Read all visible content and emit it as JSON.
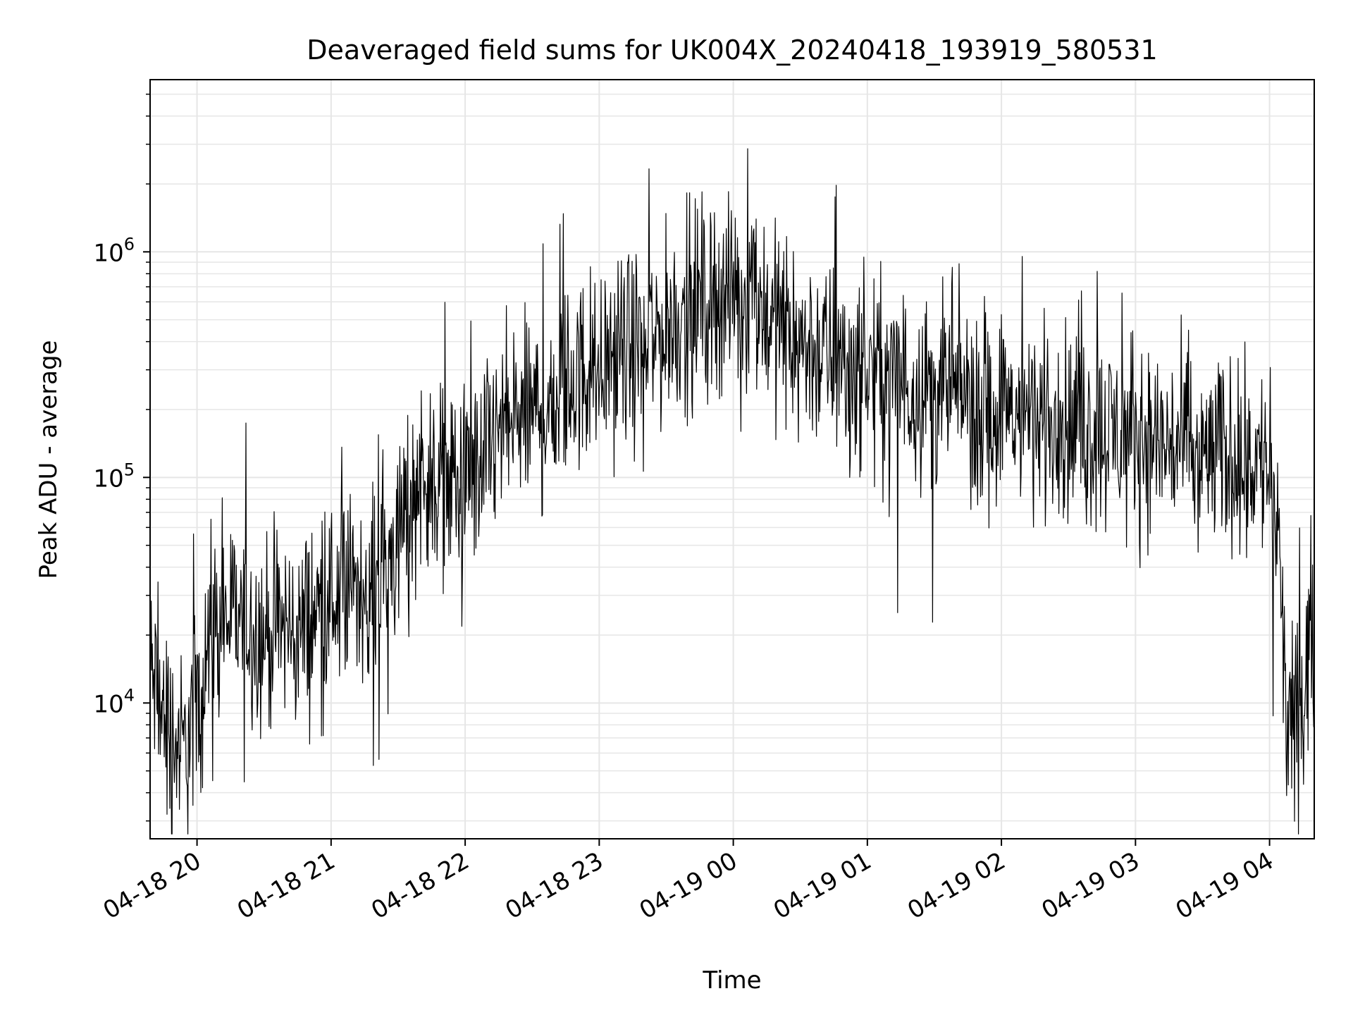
{
  "chart_data": {
    "type": "line",
    "title": "Deaveraged field sums for UK004X_20240418_193919_580531",
    "xlabel": "Time",
    "ylabel": "Peak ADU - average",
    "y_scale": "log",
    "ylim": [
      2500,
      5800000
    ],
    "xlim": [
      "2024-04-18 19:39",
      "2024-04-19 04:20"
    ],
    "grid": true,
    "line_color": "#000000",
    "grid_color": "#e6e6e6",
    "x_ticks": [
      {
        "value": "2024-04-18 20:00",
        "label": "04-18 20"
      },
      {
        "value": "2024-04-18 21:00",
        "label": "04-18 21"
      },
      {
        "value": "2024-04-18 22:00",
        "label": "04-18 22"
      },
      {
        "value": "2024-04-18 23:00",
        "label": "04-18 23"
      },
      {
        "value": "2024-04-19 00:00",
        "label": "04-19 00"
      },
      {
        "value": "2024-04-19 01:00",
        "label": "04-19 01"
      },
      {
        "value": "2024-04-19 02:00",
        "label": "04-19 02"
      },
      {
        "value": "2024-04-19 03:00",
        "label": "04-19 03"
      },
      {
        "value": "2024-04-19 04:00",
        "label": "04-19 04"
      }
    ],
    "y_ticks": [
      {
        "value": 10000,
        "base": "10",
        "exp": "4"
      },
      {
        "value": 100000,
        "base": "10",
        "exp": "5"
      },
      {
        "value": 1000000,
        "base": "10",
        "exp": "6"
      }
    ],
    "series": [
      {
        "x": [
          "2024-04-18 19:39",
          "2024-04-18 19:44",
          "2024-04-18 19:49",
          "2024-04-18 19:54",
          "2024-04-18 19:59",
          "2024-04-18 20:04",
          "2024-04-18 20:09",
          "2024-04-18 20:14",
          "2024-04-18 20:19",
          "2024-04-18 20:24",
          "2024-04-18 20:29",
          "2024-04-18 20:34",
          "2024-04-18 20:39",
          "2024-04-18 20:44",
          "2024-04-18 20:49",
          "2024-04-18 20:54",
          "2024-04-18 20:59",
          "2024-04-18 21:04",
          "2024-04-18 21:09",
          "2024-04-18 21:14",
          "2024-04-18 21:19",
          "2024-04-18 21:24",
          "2024-04-18 21:29",
          "2024-04-18 21:34",
          "2024-04-18 21:39",
          "2024-04-18 21:44",
          "2024-04-18 21:49",
          "2024-04-18 21:54",
          "2024-04-18 21:59",
          "2024-04-18 22:04",
          "2024-04-18 22:09",
          "2024-04-18 22:14",
          "2024-04-18 22:19",
          "2024-04-18 22:24",
          "2024-04-18 22:29",
          "2024-04-18 22:34",
          "2024-04-18 22:39",
          "2024-04-18 22:44",
          "2024-04-18 22:49",
          "2024-04-18 22:54",
          "2024-04-18 22:59",
          "2024-04-18 23:04",
          "2024-04-18 23:09",
          "2024-04-18 23:14",
          "2024-04-18 23:19",
          "2024-04-18 23:24",
          "2024-04-18 23:29",
          "2024-04-18 23:34",
          "2024-04-18 23:39",
          "2024-04-18 23:44",
          "2024-04-18 23:49",
          "2024-04-18 23:54",
          "2024-04-18 23:59",
          "2024-04-19 00:04",
          "2024-04-19 00:09",
          "2024-04-19 00:14",
          "2024-04-19 00:19",
          "2024-04-19 00:24",
          "2024-04-19 00:29",
          "2024-04-19 00:34",
          "2024-04-19 00:39",
          "2024-04-19 00:44",
          "2024-04-19 00:49",
          "2024-04-19 00:54",
          "2024-04-19 00:59",
          "2024-04-19 01:04",
          "2024-04-19 01:09",
          "2024-04-19 01:14",
          "2024-04-19 01:19",
          "2024-04-19 01:24",
          "2024-04-19 01:29",
          "2024-04-19 01:34",
          "2024-04-19 01:39",
          "2024-04-19 01:44",
          "2024-04-19 01:49",
          "2024-04-19 01:54",
          "2024-04-19 01:59",
          "2024-04-19 02:04",
          "2024-04-19 02:09",
          "2024-04-19 02:14",
          "2024-04-19 02:19",
          "2024-04-19 02:24",
          "2024-04-19 02:29",
          "2024-04-19 02:34",
          "2024-04-19 02:39",
          "2024-04-19 02:44",
          "2024-04-19 02:49",
          "2024-04-19 02:54",
          "2024-04-19 02:59",
          "2024-04-19 03:04",
          "2024-04-19 03:09",
          "2024-04-19 03:14",
          "2024-04-19 03:19",
          "2024-04-19 03:24",
          "2024-04-19 03:29",
          "2024-04-19 03:34",
          "2024-04-19 03:39",
          "2024-04-19 03:44",
          "2024-04-19 03:49",
          "2024-04-19 03:54",
          "2024-04-19 03:59",
          "2024-04-19 04:04",
          "2024-04-19 04:08",
          "2024-04-19 04:12",
          "2024-04-19 04:16",
          "2024-04-19 04:20"
        ],
        "y": [
          14000,
          9000,
          7000,
          6000,
          9000,
          15000,
          22000,
          24000,
          23000,
          22000,
          20000,
          21000,
          22000,
          20000,
          22000,
          26000,
          28000,
          30000,
          32000,
          34000,
          35000,
          40000,
          50000,
          70000,
          100000,
          110000,
          100000,
          95000,
          90000,
          100000,
          120000,
          150000,
          170000,
          180000,
          190000,
          200000,
          220000,
          250000,
          270000,
          290000,
          310000,
          330000,
          350000,
          370000,
          380000,
          400000,
          450000,
          500000,
          550000,
          600000,
          620000,
          640000,
          650000,
          630000,
          600000,
          550000,
          500000,
          450000,
          400000,
          380000,
          350000,
          330000,
          320000,
          310000,
          300000,
          290000,
          280000,
          270000,
          260000,
          250000,
          245000,
          240000,
          235000,
          230000,
          220000,
          210000,
          200000,
          195000,
          190000,
          185000,
          180000,
          175000,
          170000,
          165000,
          160000,
          160000,
          160000,
          155000,
          150000,
          150000,
          145000,
          140000,
          135000,
          130000,
          125000,
          125000,
          125000,
          125000,
          120000,
          120000,
          110000,
          50000,
          7000,
          8000,
          15000,
          25000
        ]
      }
    ]
  }
}
